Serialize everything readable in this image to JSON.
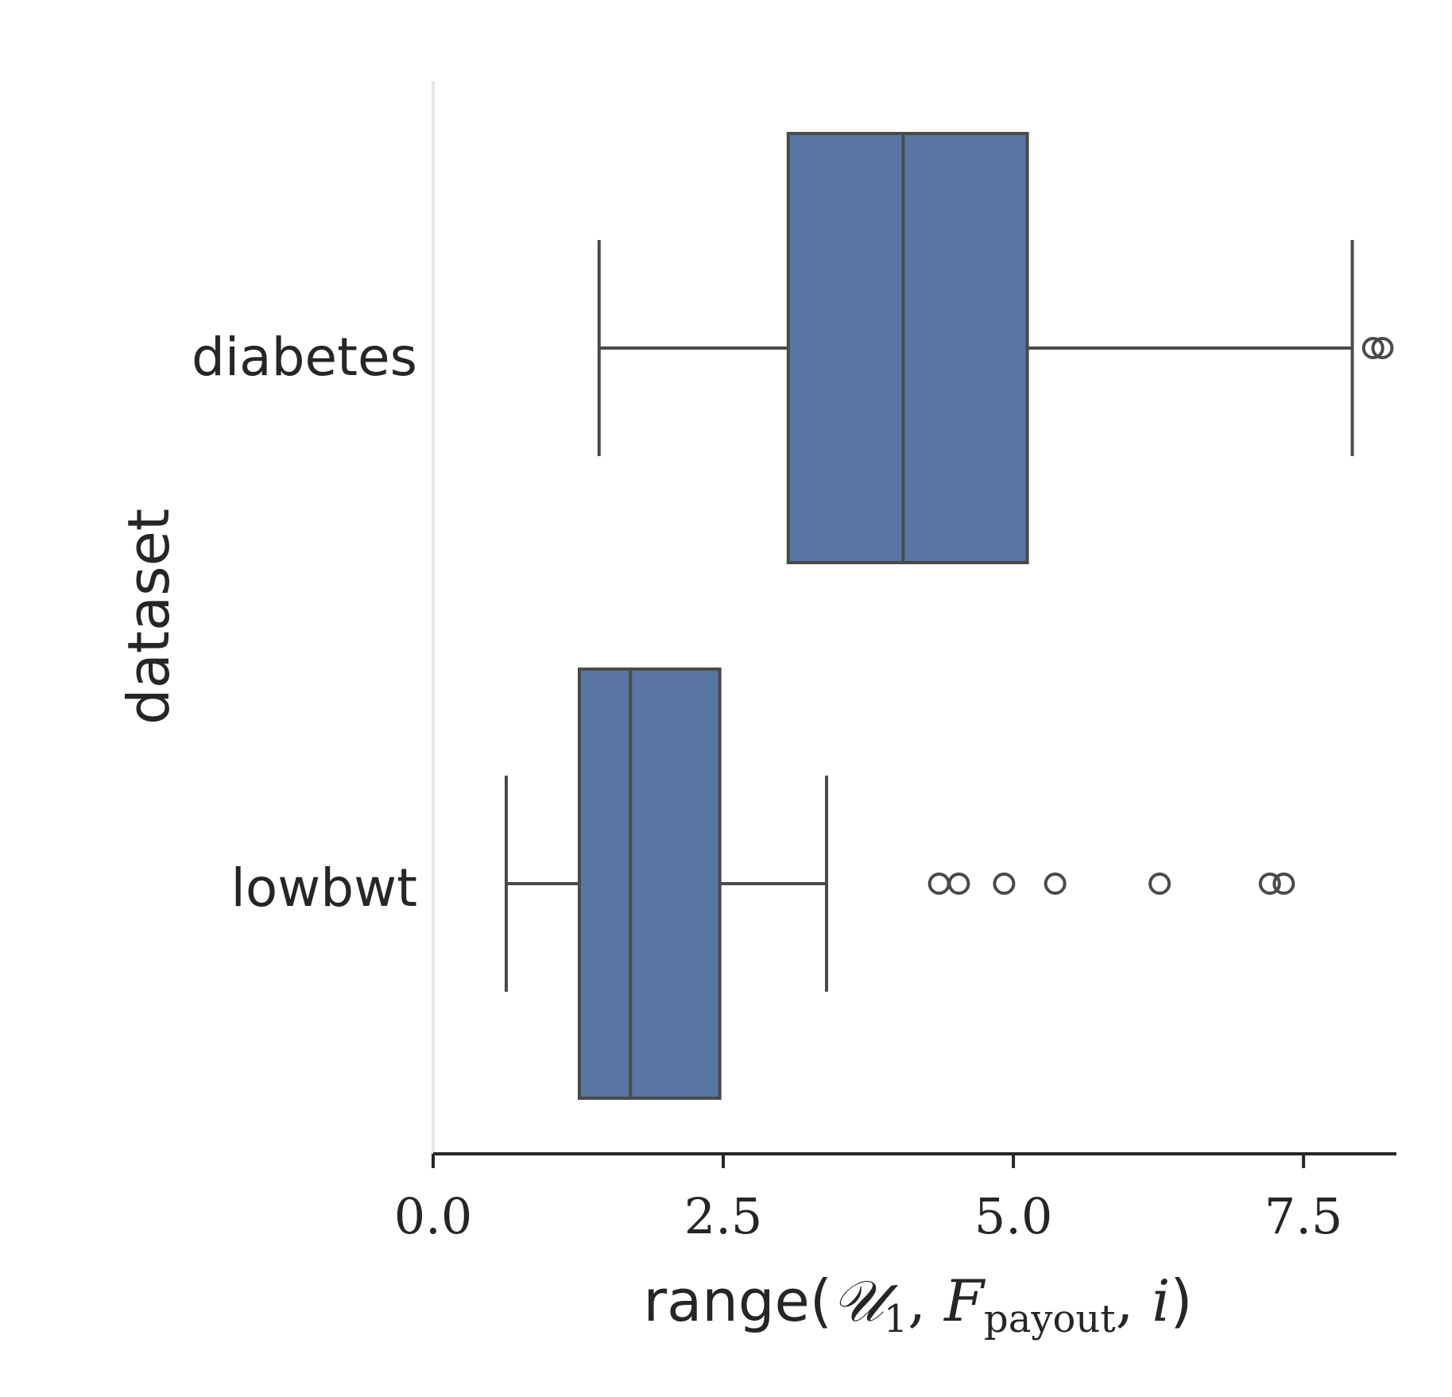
{
  "chart_data": {
    "type": "boxplot",
    "orientation": "horizontal",
    "categories": [
      "diabetes",
      "lowbwt"
    ],
    "series": [
      {
        "name": "diabetes",
        "whisker_low": 1.43,
        "q1": 3.06,
        "median": 4.05,
        "q3": 5.12,
        "whisker_high": 7.92,
        "outliers": [
          8.1,
          8.18
        ]
      },
      {
        "name": "lowbwt",
        "whisker_low": 0.63,
        "q1": 1.26,
        "median": 1.7,
        "q3": 2.47,
        "whisker_high": 3.39,
        "outliers": [
          4.36,
          4.53,
          4.92,
          5.36,
          6.26,
          7.21,
          7.33
        ]
      }
    ],
    "xlim": [
      0,
      8.3
    ],
    "xticks": [
      0.0,
      2.5,
      5.0,
      7.5
    ],
    "xtick_labels": [
      "0.0",
      "2.5",
      "5.0",
      "7.5"
    ],
    "xlabel": {
      "prefix": "range(",
      "script_u": "𝒰",
      "sub_1": "1",
      "comma1": ", ",
      "f": "F",
      "sub_payout": "payout",
      "comma2": ", ",
      "i": "i",
      "suffix": ")"
    },
    "ylabel": "dataset",
    "colors": {
      "box_fill": "#5875a4",
      "line": "#4a4a4a",
      "text": "#262626",
      "left_spine": "#e6e6e6"
    }
  }
}
